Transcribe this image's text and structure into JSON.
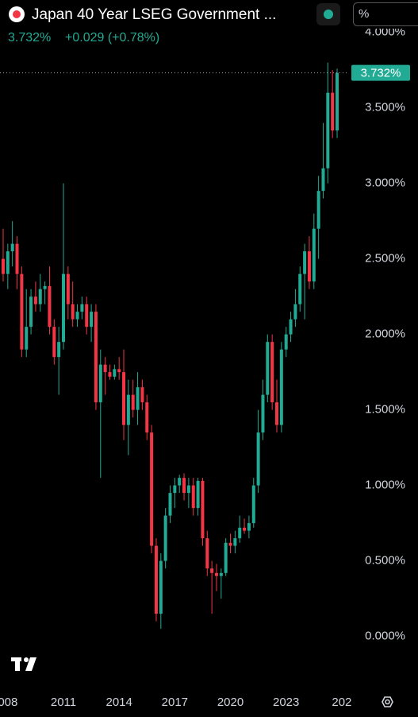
{
  "chart_data": {
    "type": "candlestick",
    "title": "Japan 40 Year LSEG Government ...",
    "last_quote": "3.732%",
    "change": "+0.029 (+0.78%)",
    "unit_selector": "%",
    "last_price_label": "3.732%",
    "up_color": "#22ab94",
    "down_color": "#f23645",
    "x": [
      2007.75,
      2008,
      2008.25,
      2008.5,
      2008.75,
      2009,
      2009.25,
      2009.5,
      2009.75,
      2010,
      2010.25,
      2010.5,
      2010.75,
      2011,
      2011.25,
      2011.5,
      2011.75,
      2012,
      2012.25,
      2012.5,
      2012.75,
      2013,
      2013.25,
      2013.5,
      2013.75,
      2014,
      2014.25,
      2014.5,
      2014.75,
      2015,
      2015.25,
      2015.5,
      2015.75,
      2016,
      2016.25,
      2016.5,
      2016.75,
      2017,
      2017.25,
      2017.5,
      2017.75,
      2018,
      2018.25,
      2018.5,
      2018.75,
      2019,
      2019.25,
      2019.5,
      2019.75,
      2020,
      2020.25,
      2020.5,
      2020.75,
      2021,
      2021.25,
      2021.5,
      2021.75,
      2022,
      2022.25,
      2022.5,
      2022.75,
      2023,
      2023.25,
      2023.5,
      2023.75,
      2024,
      2024.25,
      2024.5,
      2024.75,
      2025,
      2025.25,
      2025.5,
      2025.75
    ],
    "open": [
      2.5,
      2.4,
      2.55,
      2.6,
      2.4,
      1.9,
      2.05,
      2.25,
      2.2,
      2.3,
      2.32,
      2.05,
      1.85,
      1.95,
      2.4,
      2.2,
      2.1,
      2.15,
      2.2,
      2.05,
      2.15,
      1.55,
      1.8,
      1.75,
      1.72,
      1.77,
      1.75,
      1.4,
      1.6,
      1.5,
      1.65,
      1.55,
      1.35,
      0.6,
      0.15,
      0.5,
      0.8,
      0.95,
      1.0,
      1.05,
      0.95,
      1.0,
      0.85,
      1.03,
      0.65,
      0.45,
      0.42,
      0.4,
      0.42,
      0.62,
      0.6,
      0.65,
      0.72,
      0.7,
      0.75,
      1.0,
      1.35,
      1.6,
      1.95,
      1.55,
      1.4,
      1.9,
      2.0,
      2.1,
      2.2,
      2.4,
      2.55,
      2.35,
      2.7,
      2.95,
      3.1,
      3.6,
      3.35
    ],
    "high": [
      2.7,
      2.6,
      2.75,
      2.65,
      2.45,
      2.3,
      2.3,
      2.35,
      2.4,
      2.35,
      2.45,
      2.1,
      2.05,
      3.0,
      2.45,
      2.35,
      2.2,
      2.25,
      2.25,
      2.2,
      2.2,
      1.9,
      1.85,
      1.8,
      1.8,
      1.85,
      1.9,
      1.7,
      1.7,
      1.75,
      1.7,
      1.6,
      1.4,
      0.65,
      0.55,
      0.85,
      1.0,
      1.05,
      1.07,
      1.08,
      1.05,
      1.05,
      1.05,
      1.05,
      0.7,
      0.5,
      0.48,
      0.45,
      0.65,
      0.68,
      0.7,
      0.8,
      0.78,
      0.8,
      1.05,
      1.5,
      1.7,
      2.0,
      2.0,
      1.7,
      1.95,
      2.05,
      2.15,
      2.3,
      2.45,
      2.6,
      2.65,
      2.8,
      3.05,
      3.4,
      3.8,
      3.75,
      3.76
    ],
    "low": [
      2.35,
      2.3,
      2.45,
      2.3,
      1.85,
      1.85,
      2.0,
      2.15,
      2.15,
      2.2,
      2.0,
      1.8,
      1.6,
      1.9,
      2.1,
      2.05,
      2.05,
      2.1,
      2.0,
      1.95,
      1.5,
      1.05,
      1.6,
      1.7,
      1.7,
      1.7,
      1.3,
      1.2,
      1.45,
      1.4,
      1.5,
      1.3,
      0.55,
      0.1,
      0.05,
      0.45,
      0.75,
      0.85,
      0.95,
      0.9,
      0.85,
      0.8,
      0.8,
      0.6,
      0.4,
      0.15,
      0.3,
      0.25,
      0.4,
      0.55,
      0.55,
      0.62,
      0.68,
      0.65,
      0.72,
      0.95,
      1.3,
      1.55,
      1.5,
      1.35,
      1.35,
      1.85,
      1.95,
      2.05,
      2.15,
      2.1,
      2.3,
      2.3,
      2.5,
      2.9,
      3.0,
      3.3,
      3.3
    ],
    "close": [
      2.4,
      2.55,
      2.6,
      2.4,
      1.9,
      2.05,
      2.25,
      2.2,
      2.3,
      2.32,
      2.05,
      1.85,
      1.95,
      2.4,
      2.2,
      2.1,
      2.15,
      2.2,
      2.05,
      2.15,
      1.55,
      1.8,
      1.75,
      1.72,
      1.77,
      1.75,
      1.4,
      1.6,
      1.5,
      1.65,
      1.55,
      1.35,
      0.6,
      0.15,
      0.5,
      0.8,
      0.95,
      1.0,
      1.05,
      0.95,
      1.0,
      0.85,
      1.03,
      0.65,
      0.45,
      0.42,
      0.4,
      0.42,
      0.62,
      0.6,
      0.65,
      0.72,
      0.7,
      0.75,
      1.0,
      1.35,
      1.6,
      1.95,
      1.55,
      1.4,
      1.9,
      2.0,
      2.1,
      2.2,
      2.4,
      2.55,
      2.35,
      2.7,
      2.95,
      3.1,
      3.6,
      3.35,
      3.732
    ],
    "xlim": [
      2007.58,
      2026.39
    ],
    "xticks": [
      {
        "value": 2008,
        "label": "008"
      },
      2011,
      2014,
      2017,
      2020,
      2023,
      {
        "value": 2026,
        "label": "202"
      }
    ],
    "ylim": [
      -0.26,
      4.03
    ],
    "yticks": [
      {
        "value": 0,
        "label": "0.000%"
      },
      {
        "value": 0.5,
        "label": "0.500%"
      },
      {
        "value": 1,
        "label": "1.000%"
      },
      {
        "value": 1.5,
        "label": "1.500%"
      },
      {
        "value": 2,
        "label": "2.000%"
      },
      {
        "value": 2.5,
        "label": "2.500%"
      },
      {
        "value": 3,
        "label": "3.000%"
      },
      {
        "value": 3.5,
        "label": "3.500%"
      },
      {
        "value": 4,
        "label": "4.000%"
      }
    ]
  }
}
